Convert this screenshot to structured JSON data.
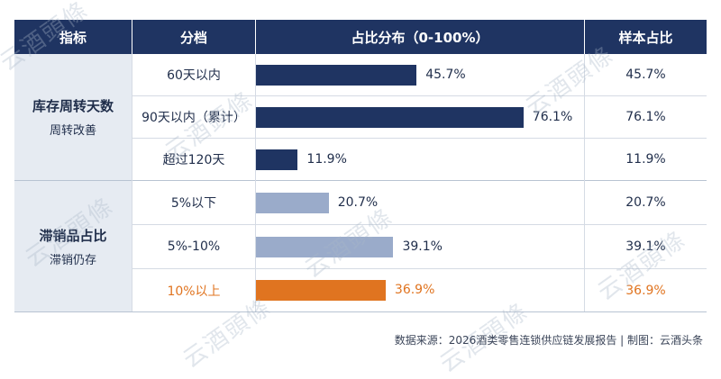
{
  "header": {
    "col1": "指标",
    "col2": "分档",
    "col3": "占比分布（0-100%）",
    "col4": "样本占比"
  },
  "groups": [
    {
      "title": "库存周转天数",
      "subtitle": "周转改善"
    },
    {
      "title": "滞销品占比",
      "subtitle": "滞销仍存"
    }
  ],
  "rows": [
    {
      "tier": "60天以内",
      "bar_label": "45.7%",
      "sample": "45.7%"
    },
    {
      "tier": "90天以内（累计）",
      "bar_label": "76.1%",
      "sample": "76.1%"
    },
    {
      "tier": "超过120天",
      "bar_label": "11.9%",
      "sample": "11.9%"
    },
    {
      "tier": "5%以下",
      "bar_label": "20.7%",
      "sample": "20.7%"
    },
    {
      "tier": "5%-10%",
      "bar_label": "39.1%",
      "sample": "39.1%"
    },
    {
      "tier": "10%以上",
      "bar_label": "36.9%",
      "sample": "36.9%"
    }
  ],
  "chart_data": {
    "type": "bar",
    "orientation": "horizontal",
    "title": "占比分布（0-100%）",
    "xlim": [
      0,
      100
    ],
    "categories": [
      "60天以内",
      "90天以内（累计）",
      "超过120天",
      "5%以下",
      "5%-10%",
      "10%以上"
    ],
    "values": [
      45.7,
      76.1,
      11.9,
      20.7,
      39.1,
      36.9
    ],
    "unit": "%",
    "colors": [
      "#1f3462",
      "#1f3462",
      "#1f3462",
      "#9aabca",
      "#9aabca",
      "#e07420"
    ]
  },
  "colors": {
    "header_bg": "#1f3462",
    "group_bg": "#e6ebf2",
    "highlight": "#e07420"
  },
  "footer": {
    "source": "数据来源：2026酒类零售连锁供应链发展报告 | 制图：云酒头条"
  },
  "watermark": "云酒頭條"
}
